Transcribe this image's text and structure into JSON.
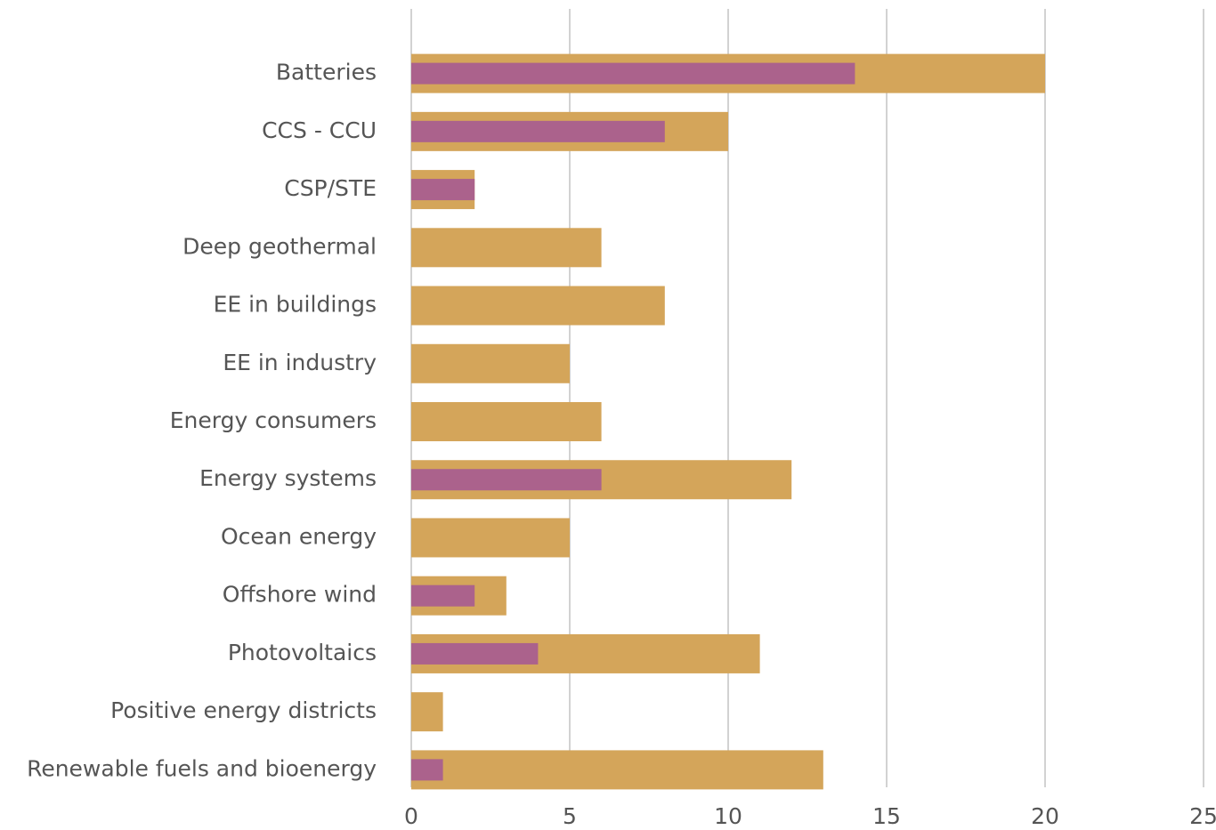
{
  "chart_data": {
    "type": "bar",
    "orientation": "horizontal",
    "categories": [
      "Batteries",
      "CCS - CCU",
      "CSP/STE",
      "Deep geothermal",
      "EE in buildings",
      "EE in industry",
      "Energy consumers",
      "Energy systems",
      "Ocean energy",
      "Offshore wind",
      "Photovoltaics",
      "Positive energy districts",
      "Renewable fuels and bioenergy"
    ],
    "series": [
      {
        "color": "#d4a55a",
        "values": [
          20,
          10,
          2,
          6,
          8,
          5,
          6,
          12,
          5,
          3,
          11,
          1,
          13
        ]
      },
      {
        "color": "#ab628c",
        "values": [
          14,
          8,
          2,
          null,
          null,
          null,
          null,
          6,
          null,
          2,
          4,
          null,
          1
        ]
      }
    ],
    "xlim": [
      0,
      25
    ],
    "xticks": [
      0,
      5,
      10,
      15,
      20,
      25
    ],
    "grid": true
  }
}
